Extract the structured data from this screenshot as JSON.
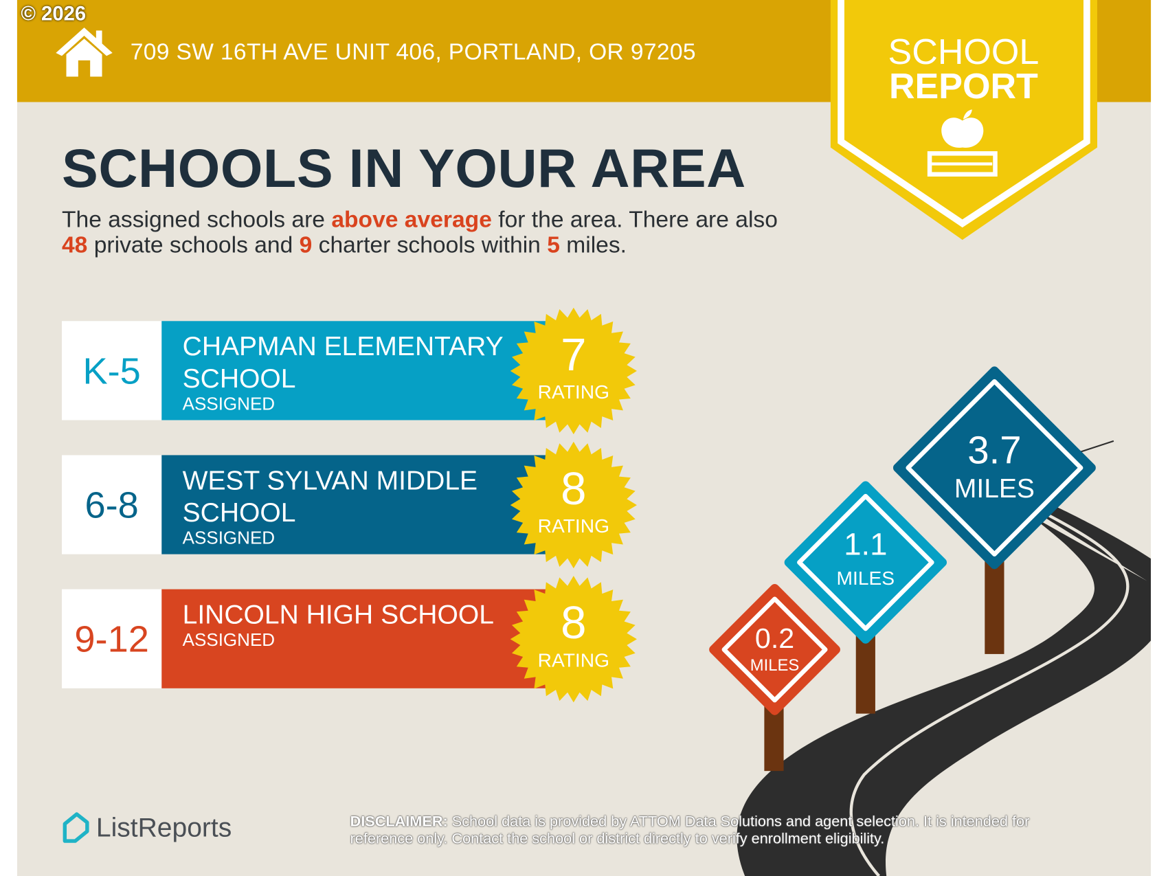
{
  "copyright": "© 2026",
  "header": {
    "address": "709 SW 16TH AVE UNIT 406, PORTLAND, OR 97205",
    "icon": "house-icon"
  },
  "badge": {
    "line1": "SCHOOL",
    "line2": "REPORT",
    "icon": "apple-on-book-icon"
  },
  "title": "SCHOOLS IN YOUR AREA",
  "summary": {
    "p1": "The assigned schools are ",
    "highlight": "above average",
    "p2": " for the area. There are also ",
    "private_count": "48",
    "p3": " private schools and ",
    "charter_count": "9",
    "p4": " charter schools within ",
    "miles": "5",
    "p5": " miles."
  },
  "schools": [
    {
      "grades": "K-5",
      "name": "CHAPMAN ELEMENTARY SCHOOL",
      "status": "ASSIGNED",
      "rating": "7",
      "rating_label": "RATING",
      "color": "#06a0c5"
    },
    {
      "grades": "6-8",
      "name": "WEST SYLVAN MIDDLE SCHOOL",
      "status": "ASSIGNED",
      "rating": "8",
      "rating_label": "RATING",
      "color": "#05648a"
    },
    {
      "grades": "9-12",
      "name": "LINCOLN HIGH SCHOOL",
      "status": "ASSIGNED",
      "rating": "8",
      "rating_label": "RATING",
      "color": "#d84520"
    }
  ],
  "distances": [
    {
      "value": "0.2",
      "unit": "MILES",
      "color": "#d84520"
    },
    {
      "value": "1.1",
      "unit": "MILES",
      "color": "#06a0c5"
    },
    {
      "value": "3.7",
      "unit": "MILES",
      "color": "#05648a"
    }
  ],
  "footer": {
    "logo": "ListReports",
    "disclaimer_label": "DISCLAIMER:",
    "disclaimer": " School data is provided by ATTOM Data Solutions and agent selection. It is intended for reference only. Contact the school or district directly to verify enrollment eligibility."
  }
}
